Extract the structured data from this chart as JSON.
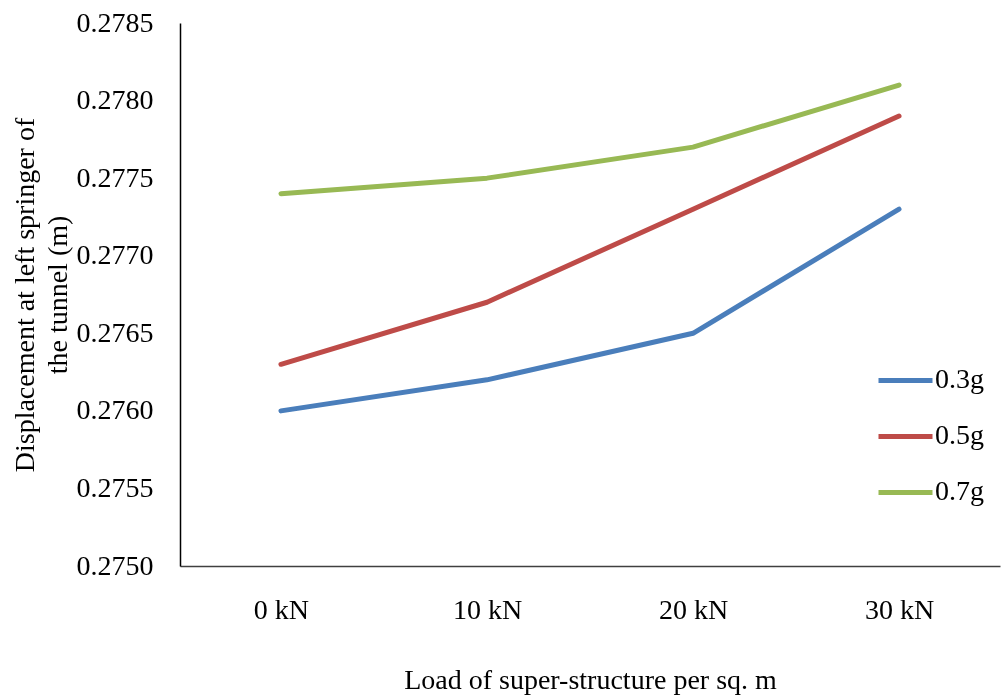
{
  "chart_data": {
    "type": "line",
    "xlabel": "Load of super-structure per sq. m",
    "ylabel": "Displacement at left springer of the tunnel (m)",
    "categories": [
      "0 kN",
      "10 kN",
      "20 kN",
      "30 kN"
    ],
    "series": [
      {
        "name": "0.3g",
        "color": "#4a7ebb",
        "values": [
          0.276,
          0.2762,
          0.2765,
          0.2773
        ]
      },
      {
        "name": "0.5g",
        "color": "#be4b48",
        "values": [
          0.2763,
          0.2767,
          0.2773,
          0.2779
        ]
      },
      {
        "name": "0.7g",
        "color": "#98b954",
        "values": [
          0.2774,
          0.2775,
          0.2777,
          0.2781
        ]
      }
    ],
    "ylim": [
      0.275,
      0.2785
    ],
    "yticks": [
      {
        "value": 0.275,
        "label": "0.2750"
      },
      0.2755,
      {
        "value": 0.276,
        "label": "0.2760"
      },
      0.2765,
      {
        "value": 0.277,
        "label": "0.2770"
      },
      0.2775,
      {
        "value": 0.278,
        "label": "0.2780"
      },
      0.2785
    ],
    "grid": false,
    "legend": "right"
  }
}
